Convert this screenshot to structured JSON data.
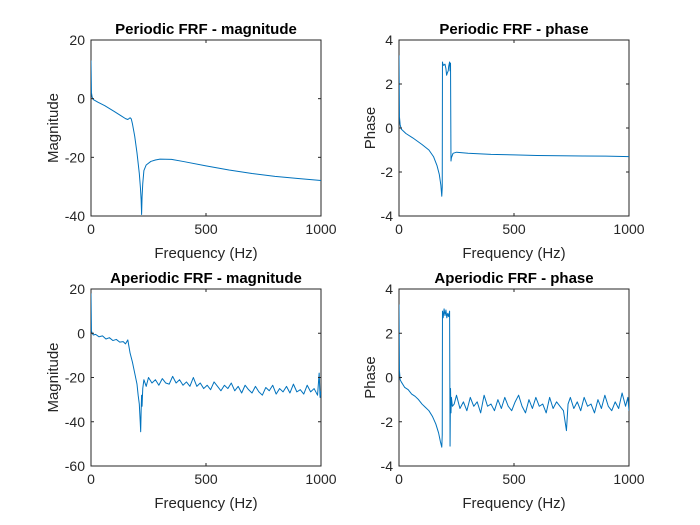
{
  "figure": {
    "background": "#ffffff",
    "line_color": "#0072bd",
    "axis_color": "#262626"
  },
  "chart_data": [
    {
      "type": "line",
      "title": "Periodic FRF - magnitude",
      "xlabel": "Frequency (Hz)",
      "ylabel": "Magnitude",
      "xlim": [
        0,
        1000
      ],
      "ylim": [
        -40,
        20
      ],
      "xticks": [
        0,
        500,
        1000
      ],
      "yticks": [
        -40,
        -20,
        0,
        20
      ],
      "grid": false,
      "series": [
        {
          "x": [
            0,
            2,
            5,
            10,
            30,
            60,
            100,
            130,
            150,
            160,
            170,
            175,
            180,
            190,
            200,
            210,
            215,
            218,
            220,
            222,
            225,
            230,
            240,
            260,
            280,
            300,
            350,
            400,
            500,
            600,
            700,
            800,
            900,
            1000
          ],
          "y": [
            13,
            2,
            0.5,
            -0.3,
            -1.2,
            -2.4,
            -4.3,
            -5.8,
            -6.8,
            -7.1,
            -6.5,
            -6.9,
            -8.5,
            -12.8,
            -18.5,
            -25.5,
            -30.5,
            -34.5,
            -39.5,
            -33.5,
            -29,
            -24.5,
            -22.6,
            -21.4,
            -20.9,
            -20.6,
            -20.7,
            -21.4,
            -22.9,
            -24.3,
            -25.5,
            -26.5,
            -27.2,
            -27.9
          ]
        }
      ]
    },
    {
      "type": "line",
      "title": "Periodic FRF - phase",
      "xlabel": "Frequency (Hz)",
      "ylabel": "Phase",
      "xlim": [
        0,
        1000
      ],
      "ylim": [
        -4,
        4
      ],
      "xticks": [
        0,
        500,
        1000
      ],
      "yticks": [
        -4,
        -2,
        0,
        2,
        4
      ],
      "grid": false,
      "series": [
        {
          "x": [
            0,
            2,
            5,
            10,
            30,
            60,
            100,
            130,
            150,
            165,
            175,
            182,
            186,
            188,
            189,
            191,
            194,
            200,
            204,
            207,
            210,
            214,
            216,
            218,
            220,
            222,
            224,
            226,
            228,
            235,
            250,
            300,
            400,
            500,
            600,
            700,
            800,
            900,
            1000
          ],
          "y": [
            3.3,
            0.5,
            0.15,
            -0.05,
            -0.25,
            -0.45,
            -0.75,
            -1,
            -1.3,
            -1.7,
            -2.1,
            -2.6,
            -3.1,
            -2.7,
            3.0,
            2.9,
            2.85,
            2.9,
            2.7,
            2.4,
            2.5,
            2.6,
            2.8,
            2.9,
            3.0,
            2.6,
            2.95,
            -1.5,
            -1.35,
            -1.15,
            -1.1,
            -1.15,
            -1.2,
            -1.22,
            -1.25,
            -1.26,
            -1.27,
            -1.28,
            -1.3
          ]
        }
      ]
    },
    {
      "type": "line",
      "title": "Aperiodic FRF - magnitude",
      "xlabel": "Frequency (Hz)",
      "ylabel": "Magnitude",
      "xlim": [
        0,
        1000
      ],
      "ylim": [
        -60,
        20
      ],
      "xticks": [
        0,
        500,
        1000
      ],
      "yticks": [
        -60,
        -40,
        -20,
        0,
        20
      ],
      "grid": false,
      "series": [
        {
          "x": [
            0,
            2,
            5,
            10,
            20,
            35,
            50,
            65,
            80,
            95,
            110,
            125,
            140,
            150,
            160,
            170,
            180,
            190,
            200,
            205,
            210,
            214,
            216,
            218,
            220,
            222,
            225,
            230,
            240,
            250,
            265,
            280,
            295,
            310,
            325,
            340,
            355,
            370,
            385,
            400,
            415,
            430,
            445,
            460,
            475,
            490,
            505,
            520,
            535,
            550,
            565,
            580,
            595,
            610,
            625,
            640,
            655,
            670,
            685,
            700,
            715,
            730,
            745,
            760,
            775,
            790,
            805,
            820,
            835,
            850,
            865,
            880,
            895,
            910,
            925,
            940,
            955,
            970,
            985,
            992,
            996,
            1000
          ],
          "y": [
            18,
            1,
            0,
            -0.8,
            -0.5,
            -1.6,
            -1.2,
            -2.6,
            -2,
            -3.3,
            -2.8,
            -4,
            -3.8,
            -4.8,
            -3,
            -9,
            -13,
            -18,
            -23,
            -28,
            -32,
            -40,
            -44.5,
            -35,
            -28,
            -33,
            -25,
            -21,
            -24,
            -20,
            -22.5,
            -21,
            -23.5,
            -20.5,
            -22.5,
            -23,
            -19.5,
            -22.5,
            -21,
            -23.5,
            -22,
            -24,
            -20,
            -24,
            -22.5,
            -25,
            -23.5,
            -25.5,
            -22,
            -24,
            -26,
            -23.5,
            -25,
            -22.5,
            -26,
            -24,
            -27,
            -23.5,
            -25.5,
            -27,
            -24,
            -26.5,
            -28,
            -24.5,
            -26,
            -23.5,
            -27.5,
            -25,
            -26.5,
            -24,
            -27,
            -23,
            -26.5,
            -25.5,
            -27.5,
            -23.5,
            -26.5,
            -25,
            -28,
            -18,
            -29,
            -26
          ]
        }
      ]
    },
    {
      "type": "line",
      "title": "Aperiodic FRF - phase",
      "xlabel": "Frequency (Hz)",
      "ylabel": "Phase",
      "xlim": [
        0,
        1000
      ],
      "ylim": [
        -4,
        4
      ],
      "xticks": [
        0,
        500,
        1000
      ],
      "yticks": [
        -4,
        -2,
        0,
        2,
        4
      ],
      "grid": false,
      "series": [
        {
          "x": [
            0,
            2,
            5,
            10,
            25,
            40,
            55,
            70,
            85,
            100,
            115,
            130,
            145,
            160,
            172,
            180,
            186,
            188,
            189,
            192,
            196,
            200,
            204,
            208,
            212,
            216,
            220,
            222,
            224,
            226,
            228,
            232,
            240,
            250,
            265,
            280,
            295,
            310,
            325,
            340,
            355,
            370,
            385,
            400,
            415,
            430,
            445,
            460,
            475,
            490,
            505,
            520,
            535,
            550,
            565,
            580,
            595,
            610,
            625,
            640,
            655,
            670,
            685,
            700,
            715,
            728,
            735,
            745,
            760,
            775,
            790,
            805,
            820,
            835,
            850,
            865,
            880,
            895,
            910,
            925,
            940,
            955,
            970,
            985,
            995,
            1000
          ],
          "y": [
            3.3,
            0.3,
            -0.1,
            -0.2,
            -0.45,
            -0.55,
            -0.75,
            -0.85,
            -1,
            -1.2,
            -1.35,
            -1.5,
            -1.75,
            -2.1,
            -2.5,
            -2.9,
            -3.15,
            -2.6,
            3.0,
            2.7,
            3.1,
            2.8,
            3.05,
            2.7,
            2.9,
            2.75,
            3.0,
            -3.1,
            -0.5,
            -1.6,
            -0.9,
            -1.3,
            -1.2,
            -0.8,
            -1.4,
            -1.1,
            -1.5,
            -0.9,
            -1.3,
            -1.1,
            -1.6,
            -0.8,
            -1.3,
            -1.2,
            -1.5,
            -1,
            -1.4,
            -0.9,
            -1.3,
            -1.5,
            -1.1,
            -0.8,
            -1.3,
            -1.6,
            -1,
            -1.4,
            -0.9,
            -1.3,
            -1.2,
            -1.6,
            -0.9,
            -1.4,
            -1.1,
            -1.3,
            -1.5,
            -2.4,
            -1.2,
            -0.9,
            -1.4,
            -1.1,
            -1.5,
            -0.9,
            -1.3,
            -1.2,
            -1.6,
            -1,
            -1.4,
            -0.8,
            -1.3,
            -1.5,
            -1.1,
            -1.4,
            -0.7,
            -1.3,
            -0.9,
            -1.5
          ]
        }
      ]
    }
  ]
}
